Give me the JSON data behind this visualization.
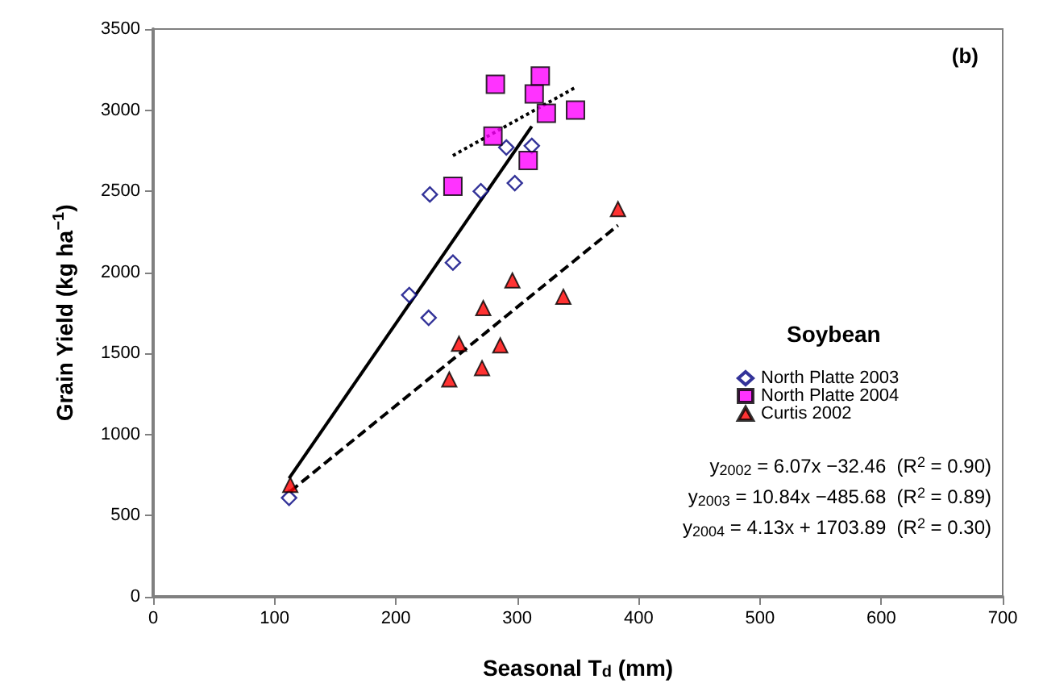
{
  "chart_data": {
    "type": "scatter",
    "xlabel": "Seasonal T$_{d}$ (mm)",
    "ylabel": "Grain Yield (kg ha$^{−1}$)",
    "legend_title": "Soybean",
    "xlim": [
      0,
      700
    ],
    "xticks": [
      0,
      100,
      200,
      300,
      400,
      500,
      600,
      700
    ],
    "ylim": [
      0,
      3500
    ],
    "yticks": [
      0,
      500,
      1000,
      1500,
      2000,
      2500,
      3000,
      3500
    ],
    "grid": false,
    "legend": "right",
    "annotations": [
      "(b)",
      "y$_{2002}$ = 6.07x −32.46  (R$^{2}$ = 0.90)",
      "y$_{2003}$ = 10.84x −485.68  (R$^{2}$ = 0.89)",
      "y$_{2004}$ = 4.13x + 1703.89  (R$^{2}$ = 0.30)"
    ],
    "series": [
      {
        "name": "North Platte 2003",
        "marker": "diamond",
        "color": "#000080",
        "x": [
          112,
          211,
          227,
          228,
          247,
          270,
          291,
          298,
          312
        ],
        "values": [
          610,
          1860,
          1720,
          2480,
          2060,
          2500,
          2770,
          2550,
          2780
        ]
      },
      {
        "name": "North Platte 2004",
        "marker": "square",
        "color": "#ff00ff",
        "x": [
          247,
          280,
          282,
          309,
          314,
          319,
          324,
          348
        ],
        "values": [
          2530,
          2840,
          3160,
          2690,
          3100,
          3210,
          2980,
          3000
        ]
      },
      {
        "name": "Curtis 2002",
        "marker": "triangle",
        "color": "#ff0000",
        "x": [
          113,
          244,
          252,
          271,
          272,
          286,
          296,
          338,
          383
        ],
        "values": [
          690,
          1340,
          1560,
          1410,
          1780,
          1550,
          1950,
          1850,
          2390
        ]
      },
      {
        "type": "line",
        "marker": "none",
        "line_style": "dashed",
        "color": "#000000",
        "x": [
          113,
          383
        ],
        "values": [
          650,
          2290
        ]
      },
      {
        "type": "line",
        "marker": "none",
        "line_style": "solid",
        "color": "#000000",
        "x": [
          112,
          312
        ],
        "values": [
          730,
          2900
        ]
      },
      {
        "type": "line",
        "marker": "none",
        "line_style": "dotted",
        "color": "#000000",
        "x": [
          247,
          348
        ],
        "values": [
          2720,
          3140
        ]
      }
    ]
  }
}
